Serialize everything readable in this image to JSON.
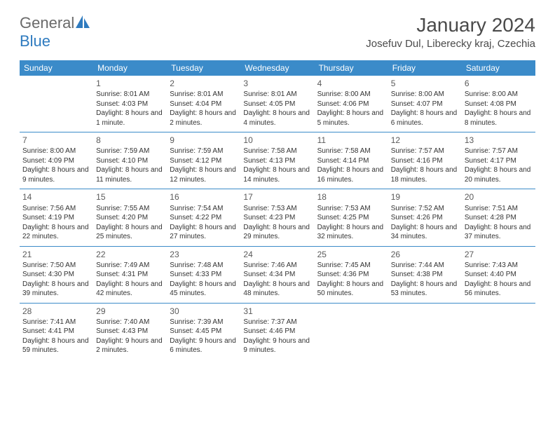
{
  "logo": {
    "text_gray": "General",
    "text_blue": "Blue",
    "icon_color": "#2f7bbf"
  },
  "title": "January 2024",
  "location": "Josefuv Dul, Liberecky kraj, Czechia",
  "colors": {
    "header_bg": "#3b8bc9",
    "header_text": "#ffffff",
    "border": "#3b8bc9",
    "text": "#333333",
    "title_text": "#4a4a4a"
  },
  "weekdays": [
    "Sunday",
    "Monday",
    "Tuesday",
    "Wednesday",
    "Thursday",
    "Friday",
    "Saturday"
  ],
  "weeks": [
    [
      null,
      {
        "n": "1",
        "sr": "8:01 AM",
        "ss": "4:03 PM",
        "dl": "8 hours and 1 minute."
      },
      {
        "n": "2",
        "sr": "8:01 AM",
        "ss": "4:04 PM",
        "dl": "8 hours and 2 minutes."
      },
      {
        "n": "3",
        "sr": "8:01 AM",
        "ss": "4:05 PM",
        "dl": "8 hours and 4 minutes."
      },
      {
        "n": "4",
        "sr": "8:00 AM",
        "ss": "4:06 PM",
        "dl": "8 hours and 5 minutes."
      },
      {
        "n": "5",
        "sr": "8:00 AM",
        "ss": "4:07 PM",
        "dl": "8 hours and 6 minutes."
      },
      {
        "n": "6",
        "sr": "8:00 AM",
        "ss": "4:08 PM",
        "dl": "8 hours and 8 minutes."
      }
    ],
    [
      {
        "n": "7",
        "sr": "8:00 AM",
        "ss": "4:09 PM",
        "dl": "8 hours and 9 minutes."
      },
      {
        "n": "8",
        "sr": "7:59 AM",
        "ss": "4:10 PM",
        "dl": "8 hours and 11 minutes."
      },
      {
        "n": "9",
        "sr": "7:59 AM",
        "ss": "4:12 PM",
        "dl": "8 hours and 12 minutes."
      },
      {
        "n": "10",
        "sr": "7:58 AM",
        "ss": "4:13 PM",
        "dl": "8 hours and 14 minutes."
      },
      {
        "n": "11",
        "sr": "7:58 AM",
        "ss": "4:14 PM",
        "dl": "8 hours and 16 minutes."
      },
      {
        "n": "12",
        "sr": "7:57 AM",
        "ss": "4:16 PM",
        "dl": "8 hours and 18 minutes."
      },
      {
        "n": "13",
        "sr": "7:57 AM",
        "ss": "4:17 PM",
        "dl": "8 hours and 20 minutes."
      }
    ],
    [
      {
        "n": "14",
        "sr": "7:56 AM",
        "ss": "4:19 PM",
        "dl": "8 hours and 22 minutes."
      },
      {
        "n": "15",
        "sr": "7:55 AM",
        "ss": "4:20 PM",
        "dl": "8 hours and 25 minutes."
      },
      {
        "n": "16",
        "sr": "7:54 AM",
        "ss": "4:22 PM",
        "dl": "8 hours and 27 minutes."
      },
      {
        "n": "17",
        "sr": "7:53 AM",
        "ss": "4:23 PM",
        "dl": "8 hours and 29 minutes."
      },
      {
        "n": "18",
        "sr": "7:53 AM",
        "ss": "4:25 PM",
        "dl": "8 hours and 32 minutes."
      },
      {
        "n": "19",
        "sr": "7:52 AM",
        "ss": "4:26 PM",
        "dl": "8 hours and 34 minutes."
      },
      {
        "n": "20",
        "sr": "7:51 AM",
        "ss": "4:28 PM",
        "dl": "8 hours and 37 minutes."
      }
    ],
    [
      {
        "n": "21",
        "sr": "7:50 AM",
        "ss": "4:30 PM",
        "dl": "8 hours and 39 minutes."
      },
      {
        "n": "22",
        "sr": "7:49 AM",
        "ss": "4:31 PM",
        "dl": "8 hours and 42 minutes."
      },
      {
        "n": "23",
        "sr": "7:48 AM",
        "ss": "4:33 PM",
        "dl": "8 hours and 45 minutes."
      },
      {
        "n": "24",
        "sr": "7:46 AM",
        "ss": "4:34 PM",
        "dl": "8 hours and 48 minutes."
      },
      {
        "n": "25",
        "sr": "7:45 AM",
        "ss": "4:36 PM",
        "dl": "8 hours and 50 minutes."
      },
      {
        "n": "26",
        "sr": "7:44 AM",
        "ss": "4:38 PM",
        "dl": "8 hours and 53 minutes."
      },
      {
        "n": "27",
        "sr": "7:43 AM",
        "ss": "4:40 PM",
        "dl": "8 hours and 56 minutes."
      }
    ],
    [
      {
        "n": "28",
        "sr": "7:41 AM",
        "ss": "4:41 PM",
        "dl": "8 hours and 59 minutes."
      },
      {
        "n": "29",
        "sr": "7:40 AM",
        "ss": "4:43 PM",
        "dl": "9 hours and 2 minutes."
      },
      {
        "n": "30",
        "sr": "7:39 AM",
        "ss": "4:45 PM",
        "dl": "9 hours and 6 minutes."
      },
      {
        "n": "31",
        "sr": "7:37 AM",
        "ss": "4:46 PM",
        "dl": "9 hours and 9 minutes."
      },
      null,
      null,
      null
    ]
  ],
  "labels": {
    "sunrise": "Sunrise:",
    "sunset": "Sunset:",
    "daylight": "Daylight:"
  }
}
